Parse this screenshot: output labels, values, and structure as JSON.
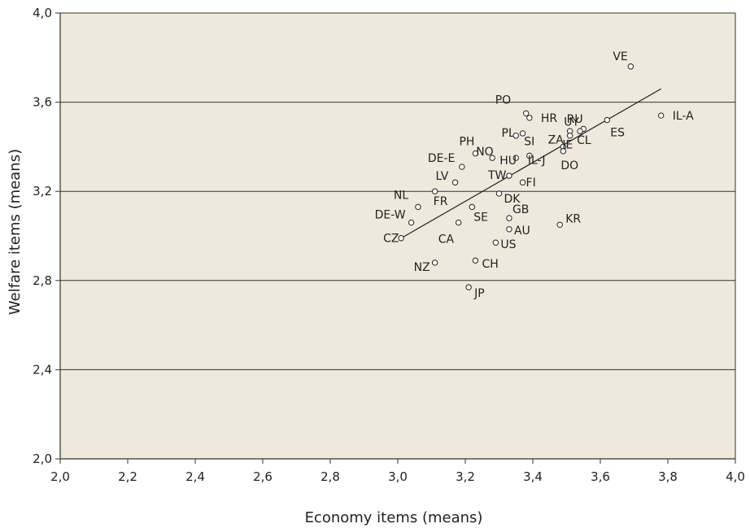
{
  "chart_data": {
    "type": "scatter",
    "title": "",
    "xlabel": "Economy items (means)",
    "ylabel": "Welfare items (means)",
    "xlim": [
      2.0,
      4.0
    ],
    "ylim": [
      2.0,
      4.0
    ],
    "x_ticks": [
      "2,0",
      "2,2",
      "2,4",
      "2,6",
      "2,8",
      "3,0",
      "3,2",
      "3,4",
      "3,6",
      "3,8",
      "4,0"
    ],
    "y_ticks": [
      "2,0",
      "2,4",
      "2,8",
      "3,2",
      "3,6",
      "4,0"
    ],
    "grid": "horizontal",
    "background": "#efe9dd",
    "trendline": {
      "x1": 3.01,
      "y1": 2.99,
      "x2": 3.78,
      "y2": 3.66
    },
    "points": [
      {
        "label": "VE",
        "x": 3.69,
        "y": 3.76
      },
      {
        "label": "IL-A",
        "x": 3.78,
        "y": 3.54
      },
      {
        "label": "ES",
        "x": 3.62,
        "y": 3.52
      },
      {
        "label": "PO",
        "x": 3.38,
        "y": 3.55
      },
      {
        "label": "HR",
        "x": 3.39,
        "y": 3.53
      },
      {
        "label": "RU",
        "x": 3.51,
        "y": 3.47
      },
      {
        "label": "UY",
        "x": 3.55,
        "y": 3.48
      },
      {
        "label": "CL",
        "x": 3.54,
        "y": 3.47
      },
      {
        "label": "ZA",
        "x": 3.51,
        "y": 3.45
      },
      {
        "label": "IE",
        "x": 3.49,
        "y": 3.4
      },
      {
        "label": "DO",
        "x": 3.49,
        "y": 3.38
      },
      {
        "label": "PL",
        "x": 3.37,
        "y": 3.46
      },
      {
        "label": "SI",
        "x": 3.35,
        "y": 3.45
      },
      {
        "label": "PH",
        "x": 3.23,
        "y": 3.37
      },
      {
        "label": "NO",
        "x": 3.28,
        "y": 3.35
      },
      {
        "label": "HU",
        "x": 3.35,
        "y": 3.35
      },
      {
        "label": "IL-J",
        "x": 3.39,
        "y": 3.36
      },
      {
        "label": "DE-E",
        "x": 3.19,
        "y": 3.31
      },
      {
        "label": "TW",
        "x": 3.33,
        "y": 3.27
      },
      {
        "label": "FI",
        "x": 3.37,
        "y": 3.24
      },
      {
        "label": "LV",
        "x": 3.17,
        "y": 3.24
      },
      {
        "label": "NL",
        "x": 3.06,
        "y": 3.13
      },
      {
        "label": "FR",
        "x": 3.11,
        "y": 3.2
      },
      {
        "label": "DK",
        "x": 3.3,
        "y": 3.19
      },
      {
        "label": "DE-W",
        "x": 3.04,
        "y": 3.06
      },
      {
        "label": "SE",
        "x": 3.22,
        "y": 3.13
      },
      {
        "label": "GB",
        "x": 3.33,
        "y": 3.08
      },
      {
        "label": "CA",
        "x": 3.18,
        "y": 3.06
      },
      {
        "label": "KR",
        "x": 3.48,
        "y": 3.05
      },
      {
        "label": "AU",
        "x": 3.33,
        "y": 3.03
      },
      {
        "label": "CZ",
        "x": 3.01,
        "y": 2.99
      },
      {
        "label": "US",
        "x": 3.29,
        "y": 2.97
      },
      {
        "label": "NZ",
        "x": 3.11,
        "y": 2.88
      },
      {
        "label": "CH",
        "x": 3.23,
        "y": 2.89
      },
      {
        "label": "JP",
        "x": 3.21,
        "y": 2.77
      }
    ]
  }
}
